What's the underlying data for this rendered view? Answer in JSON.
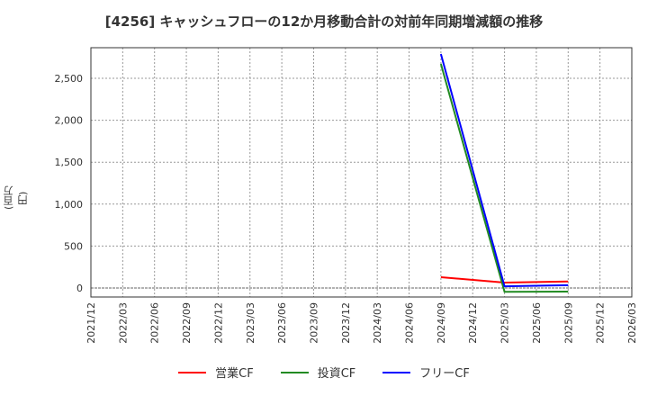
{
  "title": "[4256]  キャッシュフローの12か月移動合計の対前年同期増減額の推移",
  "y_axis_label": "(百万円)",
  "legend": [
    {
      "label": "営業CF",
      "color": "#ff0000"
    },
    {
      "label": "投資CF",
      "color": "#228b22"
    },
    {
      "label": "フリーCF",
      "color": "#0000ff"
    }
  ],
  "chart_data": {
    "type": "line",
    "title": "[4256]  キャッシュフローの12か月移動合計の対前年同期増減額の推移",
    "xlabel": "",
    "ylabel": "(百万円)",
    "ylim": [
      -110,
      2880
    ],
    "y_ticks": [
      0,
      500,
      1000,
      1500,
      2000,
      2500
    ],
    "y_tick_labels": [
      "0",
      "500",
      "1,000",
      "1,500",
      "2,000",
      "2,500"
    ],
    "x_ticks": [
      "2021/12",
      "2022/03",
      "2022/06",
      "2022/09",
      "2022/12",
      "2023/03",
      "2023/06",
      "2023/09",
      "2023/12",
      "2024/03",
      "2024/06",
      "2024/09",
      "2024/12",
      "2025/03",
      "2025/06",
      "2025/09",
      "2025/12",
      "2026/03"
    ],
    "grid": true,
    "legend_position": "bottom",
    "x": [
      "2024/09",
      "2025/03",
      "2025/09"
    ],
    "series": [
      {
        "name": "営業CF",
        "color": "#ff0000",
        "values": [
          129,
          64,
          78
        ]
      },
      {
        "name": "投資CF",
        "color": "#228b22",
        "values": [
          2672,
          -45,
          -43
        ]
      },
      {
        "name": "フリーCF",
        "color": "#0000ff",
        "values": [
          2790,
          20,
          33
        ]
      }
    ]
  }
}
